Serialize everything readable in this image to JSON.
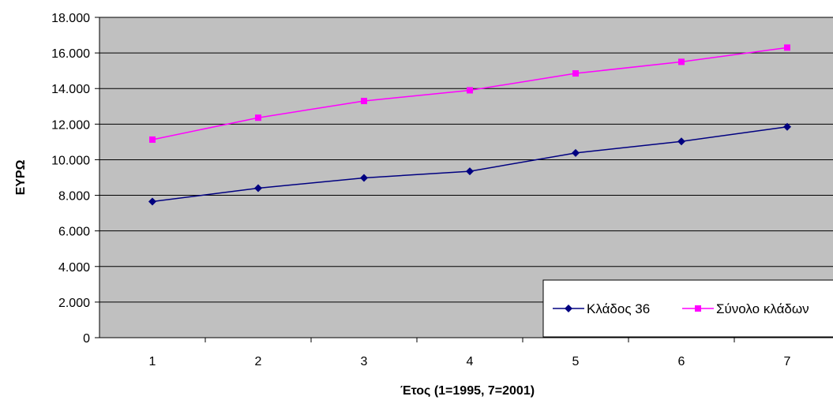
{
  "chart_data": {
    "type": "line",
    "title": "",
    "xlabel": "Έτος (1=1995, 7=2001)",
    "ylabel": "ΕΥΡΩ",
    "categories": [
      "1",
      "2",
      "3",
      "4",
      "5",
      "6",
      "7"
    ],
    "ylim": [
      0,
      18000
    ],
    "yticks": [
      0,
      2000,
      4000,
      6000,
      8000,
      10000,
      12000,
      14000,
      16000,
      18000
    ],
    "ytick_labels": [
      "0",
      "2.000",
      "4.000",
      "6.000",
      "8.000",
      "10.000",
      "12.000",
      "14.000",
      "16.000",
      "18.000"
    ],
    "grid": true,
    "legend_position": "bottom-right",
    "plot_background": "#c0c0c0",
    "series": [
      {
        "name": "Κλάδος 36",
        "color": "#000080",
        "marker": "diamond",
        "values": [
          7650,
          8400,
          8980,
          9350,
          10380,
          11030,
          11850
        ]
      },
      {
        "name": "Σύνολο κλάδων",
        "color": "#ff00ff",
        "marker": "square",
        "values": [
          11130,
          12360,
          13300,
          13900,
          14850,
          15500,
          16300
        ]
      }
    ]
  }
}
